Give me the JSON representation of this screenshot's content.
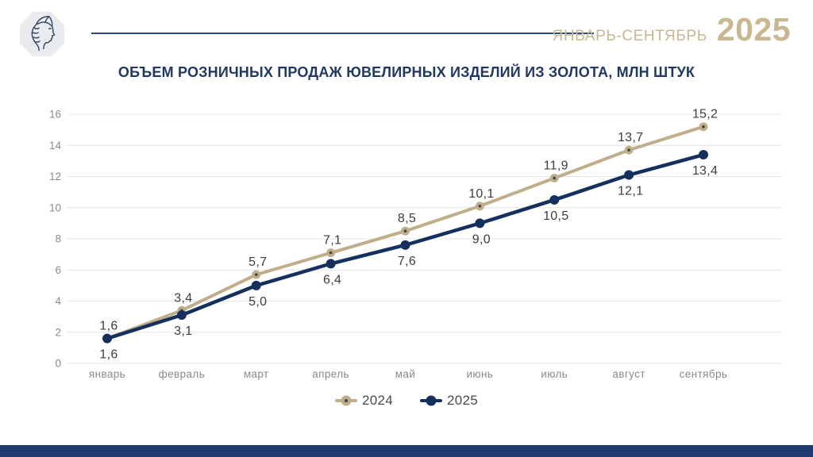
{
  "header": {
    "period_label": "ЯНВАРЬ-СЕНТЯБРЬ",
    "year": "2025",
    "accent_color": "#c8b791",
    "divider_color": "#2d4a7a",
    "logo_icon": "woman-profile-hallmark-icon"
  },
  "title": {
    "text": "ОБЪЕМ РОЗНИЧНЫХ ПРОДАЖ ЮВЕЛИРНЫХ ИЗДЕЛИЙ ИЗ ЗОЛОТА, МЛН ШТУК",
    "color": "#1f3864"
  },
  "chart_data": {
    "type": "line",
    "title": "ОБЪЕМ РОЗНИЧНЫХ ПРОДАЖ ЮВЕЛИРНЫХ ИЗДЕЛИЙ ИЗ ЗОЛОТА, МЛН ШТУК",
    "categories": [
      "январь",
      "февраль",
      "март",
      "апрель",
      "май",
      "июнь",
      "июль",
      "август",
      "сентябрь"
    ],
    "series": [
      {
        "name": "2024",
        "color": "#c0ad89",
        "marker": "dot-with-center",
        "marker_center_color": "#3c4650",
        "label_position": "above",
        "values": [
          1.6,
          3.4,
          5.7,
          7.1,
          8.5,
          10.1,
          11.9,
          13.7,
          15.2
        ],
        "labels": [
          "1,6",
          "3,4",
          "5,7",
          "7,1",
          "8,5",
          "10,1",
          "11,9",
          "13,7",
          "15,2"
        ]
      },
      {
        "name": "2025",
        "color": "#16305e",
        "marker": "solid-dot",
        "label_position": "below",
        "values": [
          1.6,
          3.1,
          5.0,
          6.4,
          7.6,
          9.0,
          10.5,
          12.1,
          13.4
        ],
        "labels": [
          "1,6",
          "3,1",
          "5,0",
          "6,4",
          "7,6",
          "9,0",
          "10,5",
          "12,1",
          "13,4"
        ]
      }
    ],
    "xlabel": "",
    "ylabel": "",
    "ylim": [
      0,
      16
    ],
    "ytick_step": 2,
    "grid": true,
    "gridline_color": "#e4e4e4",
    "axis_label_color": "#8a8a8a",
    "data_label_color": "#3d3d3d",
    "legend_position": "bottom"
  },
  "footer": {
    "bar_color": "#1e3a70"
  }
}
